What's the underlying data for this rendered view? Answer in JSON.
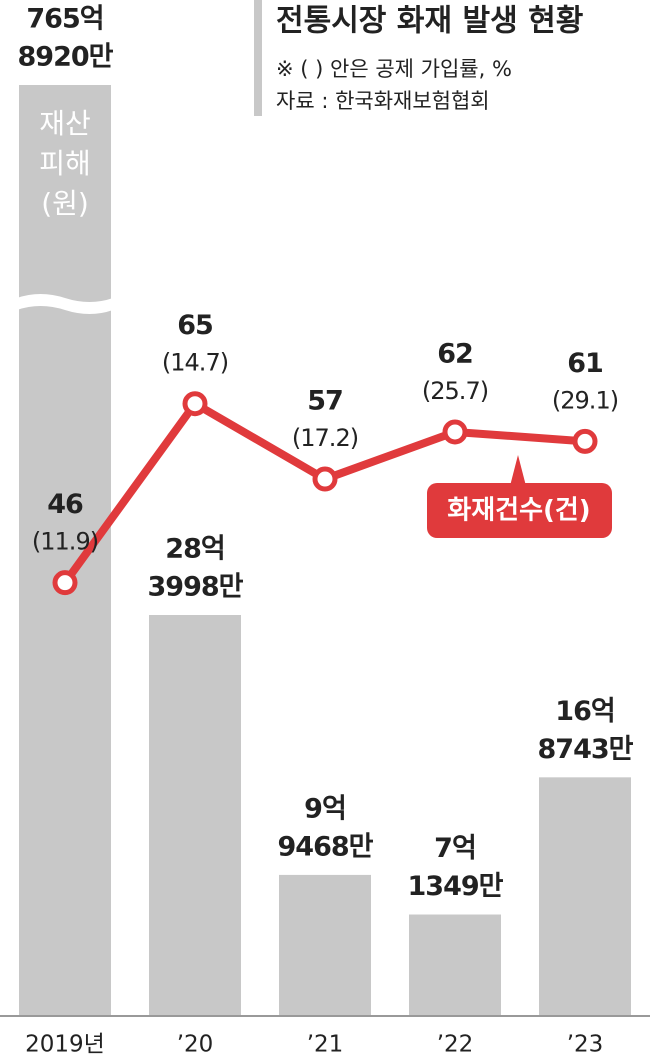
{
  "chart_data": {
    "type": "combo",
    "title": "전통시장 화재 발생 현황",
    "notes": [
      "※ (   ) 안은 공제 가입률, %",
      "자료 : 한국화재보험협회"
    ],
    "categories": [
      "2019년",
      "’20",
      "’21",
      "’22",
      "’23"
    ],
    "series": [
      {
        "type": "bar",
        "name": [
          "재산",
          "피해",
          "(원)"
        ],
        "color": "#c8c8c8",
        "values": [
          76589200000,
          2839980000,
          994680000,
          713490000,
          1687430000
        ],
        "value_labels": [
          [
            "765억",
            "8920만"
          ],
          [
            "28억",
            "3998만"
          ],
          [
            "9억",
            "9468만"
          ],
          [
            "7억",
            "1349만"
          ],
          [
            "16억",
            "8743만"
          ]
        ]
      },
      {
        "type": "line",
        "name": "화재건수(건)",
        "color": "#e03a3c",
        "values": [
          46,
          65,
          57,
          62,
          61
        ],
        "rates": [
          11.9,
          14.7,
          17.2,
          25.7,
          29.1
        ],
        "rate_labels": [
          "(11.9)",
          "(14.7)",
          "(17.2)",
          "(25.7)",
          "(29.1)"
        ]
      }
    ]
  }
}
